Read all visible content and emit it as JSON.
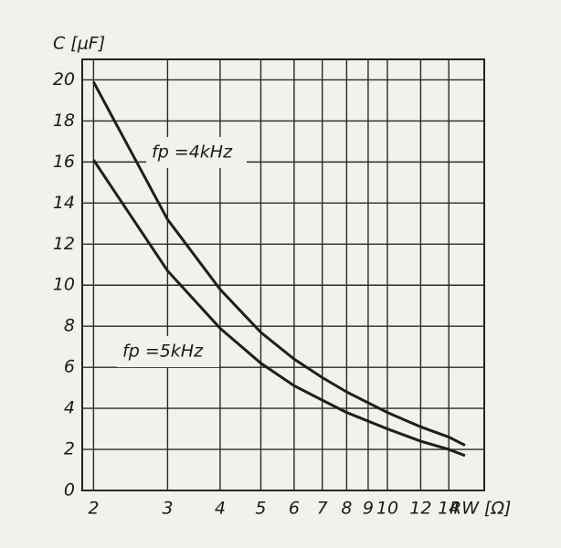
{
  "chart_data": {
    "type": "line",
    "ylabel": "C [μF]",
    "xlabel": "RW [Ω]",
    "x": [
      2,
      3,
      4,
      5,
      6,
      7,
      8,
      10,
      12,
      14,
      15.3
    ],
    "series": [
      {
        "name": "fp =4kHz",
        "color": "#1e1e1e",
        "values": [
          19.9,
          13.2,
          9.8,
          7.7,
          6.4,
          5.5,
          4.8,
          3.8,
          3.1,
          2.6,
          2.2
        ]
      },
      {
        "name": "fp =5kHz",
        "color": "#1e1e1e",
        "values": [
          16.1,
          10.7,
          7.9,
          6.2,
          5.1,
          4.4,
          3.8,
          3.0,
          2.4,
          2.0,
          1.7
        ]
      }
    ],
    "xscale": "log",
    "xlim": [
      1.88,
      17
    ],
    "xticks": [
      2,
      3,
      4,
      5,
      6,
      7,
      8,
      9,
      10,
      12,
      14
    ],
    "ylim": [
      0,
      21
    ],
    "yticks": [
      0,
      2,
      4,
      6,
      8,
      10,
      12,
      14,
      16,
      18,
      20
    ],
    "grid": true
  }
}
